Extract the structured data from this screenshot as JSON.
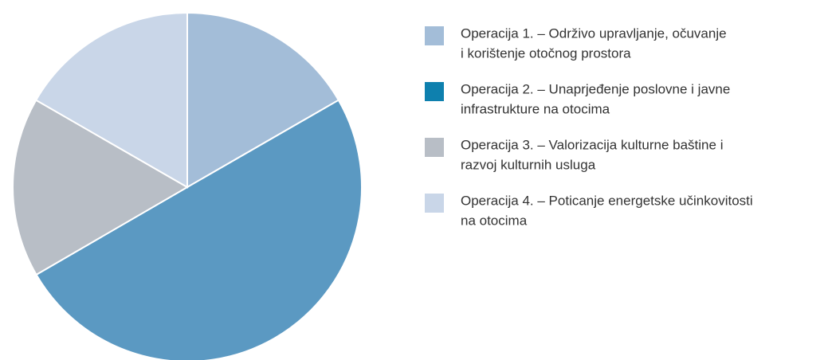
{
  "chart_data": {
    "type": "pie",
    "categories": [
      [
        "Operacija 1. – Održivo upravljanje, očuvanje",
        "i korištenje otočnog prostora"
      ],
      [
        "Operacija 2. – Unaprjeđenje poslovne i javne",
        "infrastrukture na otocima"
      ],
      [
        "Operacija 3. – Valorizacija kulturne baštine i",
        "razvoj kulturnih usluga"
      ],
      [
        "Operacija 4. – Poticanje energetske učinkovitosti",
        "na otocima"
      ]
    ],
    "values": [
      16.7,
      50,
      16.7,
      16.7
    ],
    "colors": [
      "#a3bdd8",
      "#5b99c2",
      "#b8bec6",
      "#c9d6e8"
    ],
    "legend_colors": [
      "#a3bdd8",
      "#0e80ae",
      "#b8bec6",
      "#c9d6e8"
    ],
    "legend": "right"
  }
}
